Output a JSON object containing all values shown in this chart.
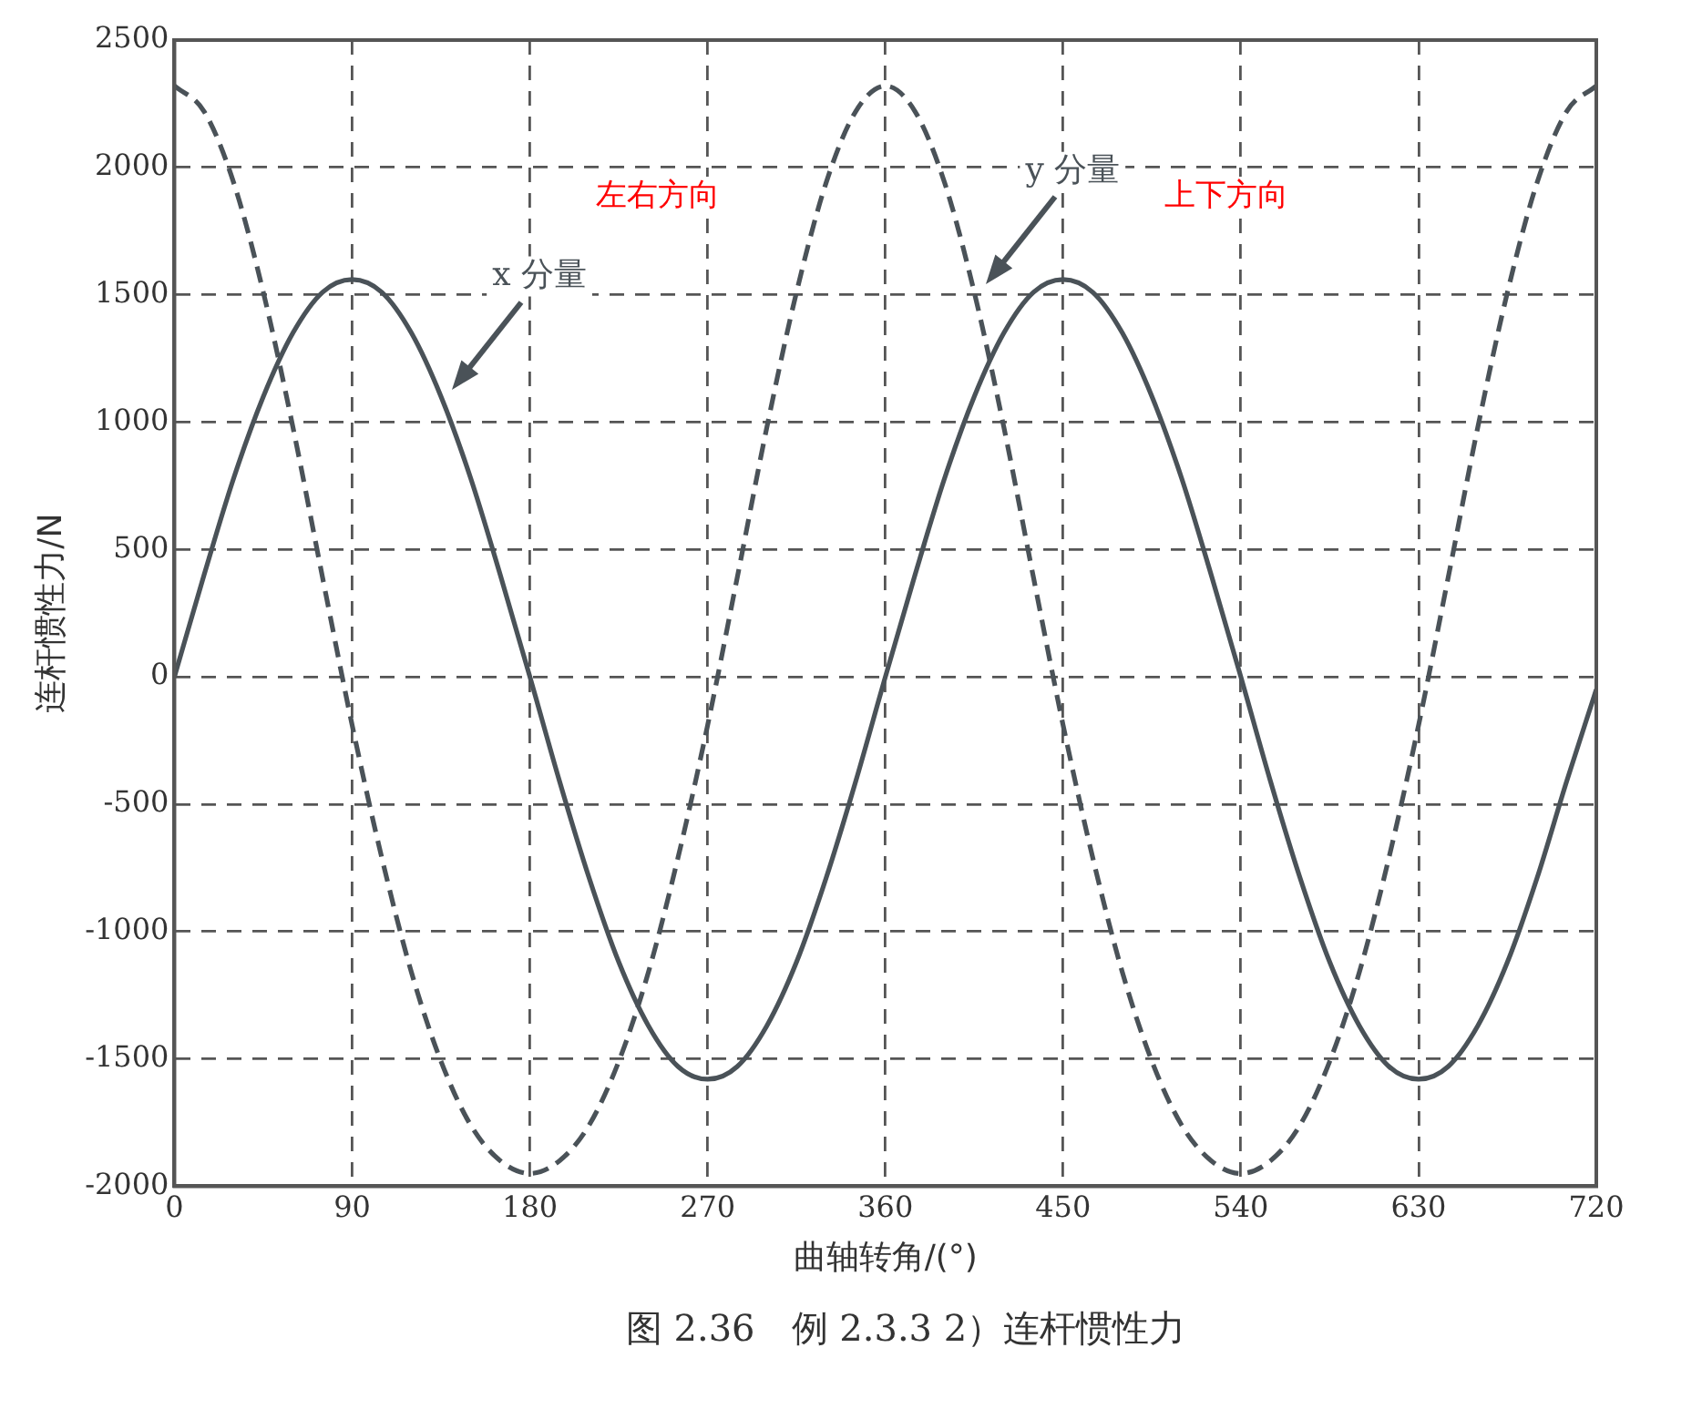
{
  "chart_data": {
    "type": "line",
    "title": "图 2.36　例 2.3.3 2）连杆惯性力",
    "xlabel": "曲轴转角/(°)",
    "ylabel": "连杆惯性力/N",
    "x": [
      0,
      15,
      30,
      45,
      60,
      75,
      90,
      105,
      120,
      135,
      150,
      165,
      180,
      195,
      210,
      225,
      240,
      255,
      270,
      285,
      300,
      315,
      330,
      345,
      360,
      375,
      390,
      405,
      420,
      435,
      450,
      465,
      480,
      495,
      510,
      525,
      540,
      555,
      570,
      585,
      600,
      615,
      630,
      645,
      660,
      675,
      690,
      705,
      720
    ],
    "series": [
      {
        "name": "x 分量",
        "color": "#4a5258",
        "line_style": "solid",
        "values": [
          0,
          400,
          780,
          1100,
          1350,
          1510,
          1560,
          1510,
          1350,
          1100,
          780,
          400,
          0,
          -410,
          -790,
          -1120,
          -1370,
          -1530,
          -1580,
          -1530,
          -1370,
          -1120,
          -790,
          -410,
          0,
          400,
          780,
          1100,
          1350,
          1510,
          1560,
          1510,
          1350,
          1100,
          780,
          400,
          0,
          -410,
          -790,
          -1120,
          -1370,
          -1530,
          -1580,
          -1530,
          -1370,
          -1120,
          -790,
          -410,
          -50
        ]
      },
      {
        "name": "y 分量",
        "color": "#4a5258",
        "line_style": "dashed",
        "values": [
          2320,
          2220,
          1940,
          1510,
          980,
          390,
          -190,
          -710,
          -1160,
          -1510,
          -1760,
          -1900,
          -1950,
          -1900,
          -1760,
          -1510,
          -1160,
          -710,
          -190,
          390,
          980,
          1510,
          1940,
          2220,
          2320,
          2220,
          1940,
          1510,
          980,
          390,
          -190,
          -710,
          -1160,
          -1510,
          -1760,
          -1900,
          -1950,
          -1900,
          -1760,
          -1510,
          -1160,
          -710,
          -190,
          390,
          980,
          1510,
          1940,
          2220,
          2320
        ]
      }
    ],
    "annotations": [
      "左右方向",
      "上下方向"
    ],
    "xlim": [
      0,
      720
    ],
    "xticks": [
      0,
      90,
      180,
      270,
      360,
      450,
      540,
      630,
      720
    ],
    "ylim": [
      -2000,
      2500
    ],
    "yticks": [
      -2000,
      -1500,
      -1000,
      -500,
      0,
      500,
      1000,
      1500,
      2000,
      2500
    ],
    "grid": true,
    "legend": false,
    "marker": "none"
  }
}
